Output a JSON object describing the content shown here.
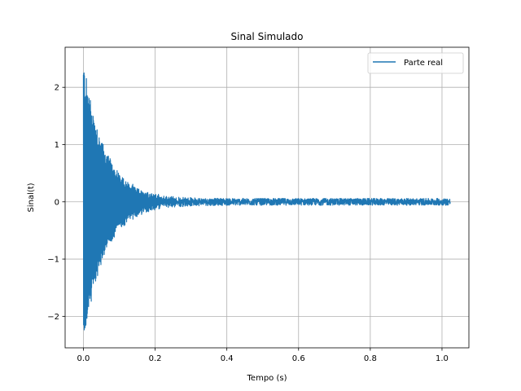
{
  "chart_data": {
    "type": "line",
    "title": "Sinal Simulado",
    "xlabel": "Tempo (s)",
    "ylabel": "Sinal(t)",
    "xlim": [
      -0.051,
      1.075
    ],
    "ylim": [
      -2.55,
      2.7
    ],
    "xticks": [
      0.0,
      0.2,
      0.4,
      0.6,
      0.8,
      1.0
    ],
    "xtick_labels": [
      "0.0",
      "0.2",
      "0.4",
      "0.6",
      "0.8",
      "1.0"
    ],
    "yticks": [
      -2,
      -1,
      0,
      1,
      2
    ],
    "ytick_labels": [
      "−2",
      "−1",
      "0",
      "1",
      "2"
    ],
    "grid": true,
    "legend": {
      "position": "top-right"
    },
    "series": [
      {
        "name": "Parte real",
        "color": "#1f77b4",
        "signal_model": {
          "t_start": 0.0,
          "t_end": 1.023,
          "initial_amplitude": 2.5,
          "decay_time_constant_s": 0.06,
          "noise_amplitude": 0.06,
          "mean": 0.0
        },
        "sampled_envelope": {
          "x": [
            0.0,
            0.01,
            0.025,
            0.05,
            0.075,
            0.1,
            0.15,
            0.2,
            0.3,
            0.4,
            0.6,
            0.8,
            1.0,
            1.023
          ],
          "y_max": [
            2.55,
            2.25,
            1.95,
            1.45,
            1.05,
            0.75,
            0.35,
            0.15,
            0.08,
            0.07,
            0.07,
            0.08,
            0.07,
            0.05
          ],
          "y_min": [
            -2.3,
            -2.2,
            -1.9,
            -1.35,
            -0.95,
            -0.65,
            -0.32,
            -0.13,
            -0.07,
            -0.07,
            -0.06,
            -0.07,
            -0.07,
            -0.05
          ]
        }
      }
    ]
  }
}
